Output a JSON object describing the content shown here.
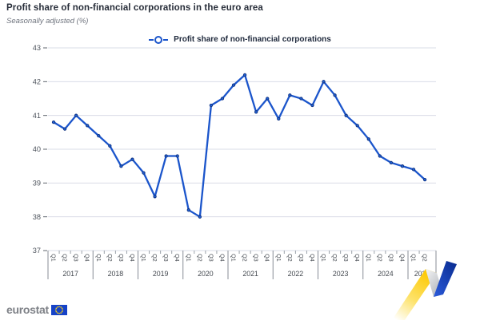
{
  "title": "Profit share of non-financial corporations in the euro area",
  "subtitle": "Seasonally adjusted (%)",
  "legend": {
    "label": "Profit share of non-financial corporations"
  },
  "footer": {
    "logo_text": "eurostat"
  },
  "colors": {
    "line": "#1b55cb",
    "marker_edge": "#0e3180",
    "gridline": "#d9dce7",
    "axis_text": "#43484f",
    "ytick_text": "#4d535c",
    "separator": "#878d96",
    "eu_blue": "#1643c8",
    "eu_yellow": "#ffd617",
    "ribbon_yellow": "#fdc800",
    "ribbon_blue": "#15409f"
  },
  "chart_data": {
    "type": "line",
    "title": "Profit share of non-financial corporations in the euro area",
    "subtitle": "Seasonally adjusted (%)",
    "xlabel": "",
    "ylabel": "Seasonally adjusted (%)",
    "ylim": [
      37,
      43
    ],
    "yticks": [
      43,
      42,
      41,
      40,
      39,
      38,
      37
    ],
    "grid": "horizontal",
    "legend_position": "top-center",
    "marker": "circle",
    "x_years": [
      {
        "year": "2017",
        "quarters": [
          "Q1",
          "Q2",
          "Q3",
          "Q4"
        ]
      },
      {
        "year": "2018",
        "quarters": [
          "Q1",
          "Q2",
          "Q3",
          "Q4"
        ]
      },
      {
        "year": "2019",
        "quarters": [
          "Q1",
          "Q2",
          "Q3",
          "Q4"
        ]
      },
      {
        "year": "2020",
        "quarters": [
          "Q1",
          "Q2",
          "Q3",
          "Q4"
        ]
      },
      {
        "year": "2021",
        "quarters": [
          "Q1",
          "Q2",
          "Q3",
          "Q4"
        ]
      },
      {
        "year": "2022",
        "quarters": [
          "Q1",
          "Q2",
          "Q3",
          "Q4"
        ]
      },
      {
        "year": "2023",
        "quarters": [
          "Q1",
          "Q2",
          "Q3",
          "Q4"
        ]
      },
      {
        "year": "2024",
        "quarters": [
          "Q1",
          "Q2",
          "Q3",
          "Q4"
        ]
      },
      {
        "year": "2025",
        "quarters": [
          "Q1",
          "Q2"
        ]
      }
    ],
    "series": [
      {
        "name": "Profit share of non-financial corporations",
        "values": [
          40.8,
          40.6,
          41.0,
          40.7,
          40.4,
          40.1,
          39.5,
          39.7,
          39.3,
          38.6,
          39.8,
          39.8,
          38.2,
          38.0,
          41.3,
          41.5,
          41.9,
          42.2,
          41.1,
          41.5,
          40.9,
          41.6,
          41.5,
          41.3,
          42.0,
          41.6,
          41.0,
          40.7,
          40.3,
          39.8,
          39.6,
          39.5,
          39.4,
          39.1
        ]
      }
    ]
  }
}
